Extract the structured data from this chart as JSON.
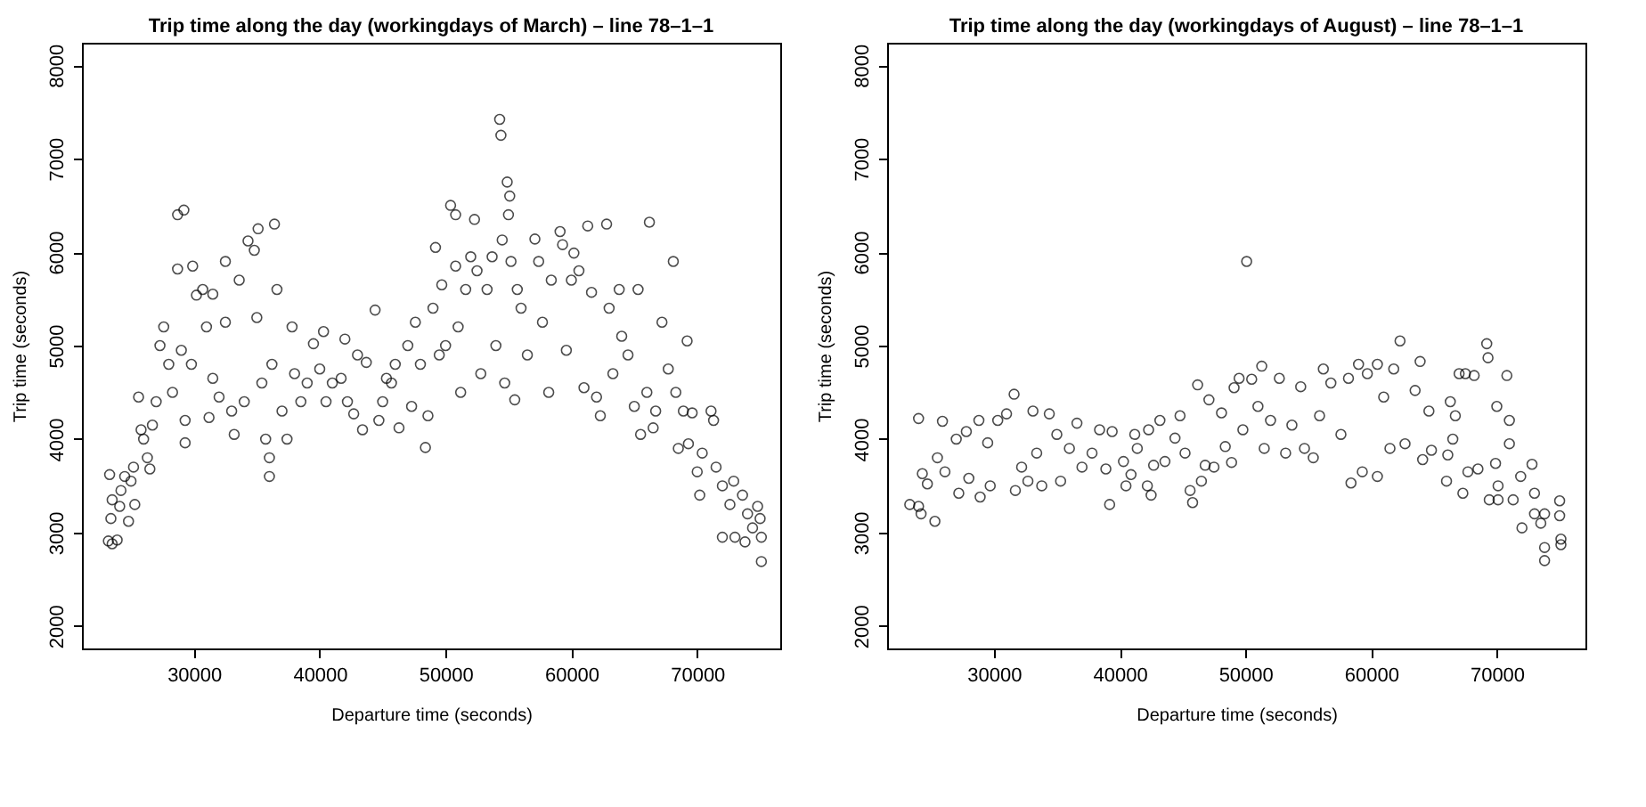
{
  "chart_data": [
    {
      "type": "scatter",
      "title": "Trip time along the day (workingdays of March) – line 78–1–1",
      "xlabel": "Departure time (seconds)",
      "ylabel": "Trip time (seconds)",
      "xlim": [
        21100,
        76600
      ],
      "xticks": [
        30000,
        40000,
        50000,
        60000,
        70000
      ],
      "ylim": [
        1760,
        8240
      ],
      "yticks": [
        2000,
        3000,
        4000,
        5000,
        6000,
        7000,
        8000
      ],
      "marker": "circle",
      "series": [
        {
          "color": "#000000",
          "x": [
            23200,
            23500,
            23900,
            23300,
            23400,
            23500,
            24100,
            24500,
            24800,
            24200,
            25000,
            25300,
            25200,
            25600,
            25800,
            26000,
            26300,
            26500,
            26700,
            27000,
            27300,
            27600,
            28000,
            28300,
            28700,
            29200,
            28700,
            29000,
            29300,
            29300,
            29900,
            29800,
            30200,
            30700,
            31000,
            31500,
            31200,
            31500,
            32000,
            32500,
            32500,
            33000,
            33200,
            33600,
            34000,
            34300,
            34800,
            35100,
            35000,
            35400,
            35700,
            36000,
            36000,
            36200,
            36400,
            36600,
            37000,
            37400,
            37800,
            38000,
            38500,
            39000,
            39500,
            40000,
            40300,
            40500,
            41000,
            41700,
            42000,
            42200,
            42700,
            43000,
            43400,
            43700,
            44400,
            44700,
            45000,
            45300,
            45700,
            46000,
            46300,
            47000,
            47300,
            47600,
            48000,
            48400,
            48600,
            49200,
            49000,
            49500,
            49700,
            50000,
            50400,
            50800,
            50800,
            51000,
            51200,
            51600,
            52000,
            52300,
            52500,
            52800,
            53300,
            53700,
            54000,
            54300,
            54400,
            54500,
            54700,
            54900,
            55100,
            55000,
            55200,
            55500,
            55700,
            56000,
            56500,
            57100,
            57400,
            57700,
            58200,
            58400,
            59100,
            59300,
            59600,
            60000,
            60200,
            60600,
            61000,
            61300,
            61600,
            62000,
            62300,
            62800,
            63000,
            63300,
            63800,
            64000,
            64500,
            65000,
            65300,
            65500,
            66000,
            66200,
            66500,
            66700,
            67200,
            67700,
            68100,
            68300,
            68500,
            68900,
            69200,
            69300,
            69600,
            70000,
            70200,
            70400,
            71100,
            71300,
            71500,
            72000,
            72000,
            72600,
            72900,
            73000,
            73600,
            73800,
            74000,
            74400,
            74800,
            75000,
            75100,
            75100
          ],
          "values": [
            2910,
            2880,
            2920,
            3620,
            3150,
            3350,
            3280,
            3600,
            3120,
            3450,
            3550,
            3300,
            3700,
            4450,
            4100,
            4000,
            3800,
            3680,
            4150,
            4400,
            5000,
            5200,
            4800,
            4500,
            6400,
            6450,
            5820,
            4950,
            4200,
            3960,
            5850,
            4800,
            5540,
            5600,
            5200,
            5550,
            4230,
            4650,
            4450,
            5900,
            5250,
            4300,
            4050,
            5700,
            4400,
            6120,
            6020,
            6250,
            5300,
            4600,
            4000,
            3800,
            3600,
            4800,
            6300,
            5600,
            4300,
            4000,
            5200,
            4700,
            4400,
            4600,
            5020,
            4750,
            5150,
            4400,
            4600,
            4650,
            5070,
            4400,
            4270,
            4900,
            4100,
            4820,
            5380,
            4200,
            4400,
            4650,
            4600,
            4800,
            4120,
            5000,
            4350,
            5250,
            4800,
            3910,
            4250,
            6050,
            5400,
            4900,
            5650,
            5000,
            6500,
            6400,
            5850,
            5200,
            4500,
            5600,
            5950,
            6350,
            5800,
            4700,
            5600,
            5950,
            5000,
            7420,
            7250,
            6130,
            4600,
            6750,
            6600,
            6400,
            5900,
            4420,
            5600,
            5400,
            4900,
            6140,
            5900,
            5250,
            4500,
            5700,
            6220,
            6080,
            4950,
            5700,
            5990,
            5800,
            4550,
            6280,
            5570,
            4450,
            4250,
            6300,
            5400,
            4700,
            5600,
            5100,
            4900,
            4350,
            5600,
            4050,
            4500,
            6320,
            4120,
            4300,
            5250,
            4750,
            5900,
            4500,
            3900,
            4300,
            5050,
            3950,
            4280,
            3650,
            3400,
            3850,
            4300,
            4200,
            3700,
            3500,
            2950,
            3300,
            3550,
            2950,
            3400,
            2900,
            3200,
            3050,
            3280,
            3150,
            2950,
            2690
          ]
        }
      ]
    },
    {
      "type": "scatter",
      "title": "Trip time along the day (workingdays of August) – line 78–1–1",
      "xlabel": "Departure time (seconds)",
      "ylabel": "Trip time (seconds)",
      "xlim": [
        21500,
        77050
      ],
      "xticks": [
        30000,
        40000,
        50000,
        60000,
        70000
      ],
      "ylim": [
        1760,
        8240
      ],
      "yticks": [
        2000,
        3000,
        4000,
        5000,
        6000,
        7000,
        8000
      ],
      "marker": "circle",
      "series": [
        {
          "color": "#000000",
          "x": [
            23300,
            24000,
            24000,
            24200,
            24300,
            24700,
            25300,
            25500,
            25900,
            26100,
            27000,
            27200,
            27800,
            28000,
            28800,
            28900,
            29500,
            29700,
            30300,
            31000,
            31600,
            31700,
            32200,
            32700,
            33100,
            33400,
            33800,
            34400,
            35000,
            35300,
            36000,
            36600,
            37000,
            37800,
            38400,
            38900,
            39200,
            39400,
            40300,
            40500,
            40900,
            41200,
            41400,
            42200,
            42300,
            42500,
            42700,
            43200,
            43600,
            44400,
            44800,
            45200,
            45600,
            45800,
            46200,
            46500,
            46800,
            47100,
            47500,
            48100,
            48400,
            48900,
            49100,
            49500,
            49800,
            50100,
            50500,
            51000,
            51300,
            51500,
            52000,
            52700,
            53200,
            53700,
            54400,
            54700,
            55400,
            55900,
            56200,
            56800,
            57600,
            58200,
            58400,
            59000,
            59300,
            59700,
            60500,
            60500,
            61000,
            61500,
            61800,
            62300,
            62700,
            63500,
            63900,
            64100,
            64600,
            64800,
            66000,
            66100,
            66300,
            66500,
            66700,
            67000,
            67300,
            67500,
            67700,
            68200,
            68500,
            69300,
            69200,
            69400,
            69900,
            70000,
            70100,
            70100,
            70800,
            71000,
            71000,
            71300,
            71900,
            72000,
            72800,
            73000,
            73000,
            73500,
            73800,
            73800,
            73800,
            75000,
            75000,
            75100,
            75100
          ],
          "values": [
            3300,
            4220,
            3280,
            3200,
            3630,
            3520,
            3120,
            3800,
            4190,
            3650,
            4000,
            3420,
            4080,
            3580,
            4200,
            3380,
            3960,
            3500,
            4200,
            4270,
            4480,
            3450,
            3700,
            3550,
            4300,
            3850,
            3500,
            4270,
            4050,
            3550,
            3900,
            4170,
            3700,
            3850,
            4100,
            3680,
            3300,
            4080,
            3760,
            3500,
            3620,
            4050,
            3900,
            3500,
            4100,
            3400,
            3720,
            4200,
            3760,
            4010,
            4250,
            3850,
            3450,
            3320,
            4580,
            3550,
            3720,
            4420,
            3700,
            4280,
            3920,
            3750,
            4550,
            4650,
            4100,
            5900,
            4640,
            4350,
            4780,
            3900,
            4200,
            4650,
            3850,
            4150,
            4560,
            3900,
            3800,
            4250,
            4750,
            4600,
            4050,
            4650,
            3530,
            4800,
            3650,
            4700,
            3600,
            4800,
            4450,
            3900,
            4750,
            5050,
            3950,
            4520,
            4830,
            3780,
            4300,
            3880,
            3550,
            3830,
            4400,
            4000,
            4250,
            4700,
            3420,
            4700,
            3650,
            4680,
            3680,
            4870,
            5020,
            3350,
            3740,
            4350,
            3500,
            3350,
            4680,
            4200,
            3950,
            3350,
            3600,
            3050,
            3730,
            3420,
            3200,
            3100,
            3200,
            2840,
            2700,
            3340,
            3180,
            2930,
            2870
          ]
        }
      ]
    }
  ]
}
